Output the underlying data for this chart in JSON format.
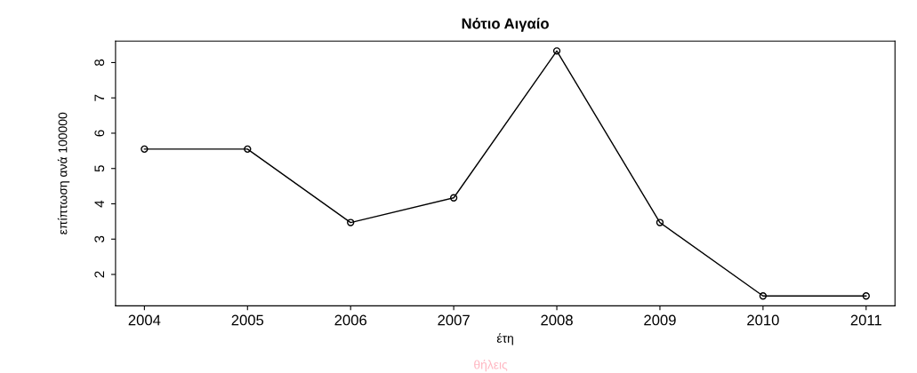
{
  "chart_data": {
    "type": "line",
    "title": "Νότιο Αιγαίο",
    "xlabel": "έτη",
    "ylabel": "επίπτωση ανά 100000",
    "annotations": [
      "θήλεις"
    ],
    "x": [
      2004,
      2005,
      2006,
      2007,
      2008,
      2009,
      2010,
      2011
    ],
    "series": [
      {
        "color": "#000000",
        "values": [
          5.55,
          5.55,
          3.47,
          4.17,
          8.33,
          3.47,
          1.39,
          1.39
        ]
      }
    ],
    "xlim": [
      2003.72,
      2011.28
    ],
    "xticks": [
      2004,
      2005,
      2006,
      2007,
      2008,
      2009,
      2010,
      2011
    ],
    "ylim": [
      1.11,
      8.61
    ],
    "yticks": [
      2,
      3,
      4,
      5,
      6,
      7,
      8
    ],
    "marker": "circle",
    "line_style": "solid",
    "grid": false,
    "legend": false
  }
}
